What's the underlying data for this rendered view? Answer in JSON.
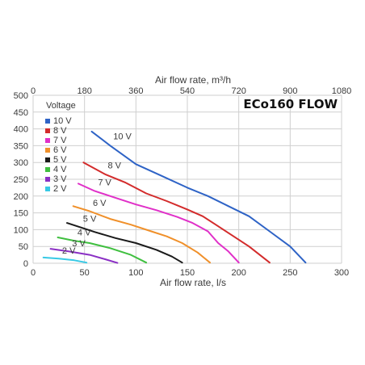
{
  "chart_data": {
    "type": "line",
    "title": "ECo160 FLOW",
    "xlabel": "Air flow rate, l/s",
    "x2label": "Air flow rate, m³/h",
    "ylabel": "",
    "legend_title": "Voltage",
    "legend_position": "top-left",
    "grid": true,
    "xlim": [
      0,
      300
    ],
    "ylim": [
      0,
      500
    ],
    "x_ticks": [
      "0",
      "50",
      "100",
      "150",
      "200",
      "250",
      "300"
    ],
    "y_ticks": [
      "0",
      "50",
      "100",
      "150",
      "200",
      "250",
      "300",
      "350",
      "400",
      "450",
      "500"
    ],
    "x2_ticks": [
      "0",
      "180",
      "360",
      "540",
      "720",
      "900",
      "1080"
    ],
    "series": [
      {
        "name": "10 V",
        "curve_label": "10 V",
        "color": "#2e63c6",
        "x": [
          57,
          75,
          100,
          125,
          150,
          170,
          190,
          210,
          230,
          250,
          265
        ],
        "y": [
          392,
          350,
          295,
          260,
          225,
          200,
          170,
          140,
          95,
          50,
          2
        ]
      },
      {
        "name": "8 V",
        "curve_label": "8 V",
        "color": "#d32b2b",
        "x": [
          49,
          70,
          90,
          110,
          130,
          150,
          165,
          180,
          195,
          210,
          230
        ],
        "y": [
          300,
          265,
          240,
          208,
          185,
          160,
          140,
          110,
          80,
          50,
          2
        ]
      },
      {
        "name": "7 V",
        "curve_label": "7 V",
        "color": "#e030c8",
        "x": [
          44,
          60,
          80,
          100,
          120,
          140,
          155,
          170,
          180,
          190,
          200
        ],
        "y": [
          237,
          215,
          195,
          175,
          158,
          138,
          120,
          95,
          60,
          35,
          2
        ]
      },
      {
        "name": "6 V",
        "curve_label": "6 V",
        "color": "#f0902a",
        "x": [
          39,
          55,
          75,
          95,
          115,
          130,
          145,
          160,
          172
        ],
        "y": [
          170,
          155,
          132,
          115,
          95,
          80,
          60,
          32,
          2
        ]
      },
      {
        "name": "5 V",
        "curve_label": "5 V",
        "color": "#1a1a1a",
        "x": [
          33,
          45,
          60,
          80,
          100,
          120,
          135,
          145
        ],
        "y": [
          120,
          108,
          93,
          75,
          60,
          40,
          20,
          2
        ]
      },
      {
        "name": "4 V",
        "curve_label": "4 V",
        "color": "#3fbf3f",
        "x": [
          24,
          40,
          55,
          75,
          95,
          110
        ],
        "y": [
          77,
          67,
          60,
          45,
          25,
          2
        ]
      },
      {
        "name": "3 V",
        "curve_label": "3 V",
        "color": "#8a2fc4",
        "x": [
          17,
          35,
          55,
          70,
          82
        ],
        "y": [
          43,
          35,
          25,
          12,
          1
        ]
      },
      {
        "name": "2 V",
        "curve_label": "2 V",
        "color": "#37c9e5",
        "x": [
          10,
          25,
          40,
          52
        ],
        "y": [
          17,
          14,
          9,
          2
        ]
      }
    ]
  }
}
